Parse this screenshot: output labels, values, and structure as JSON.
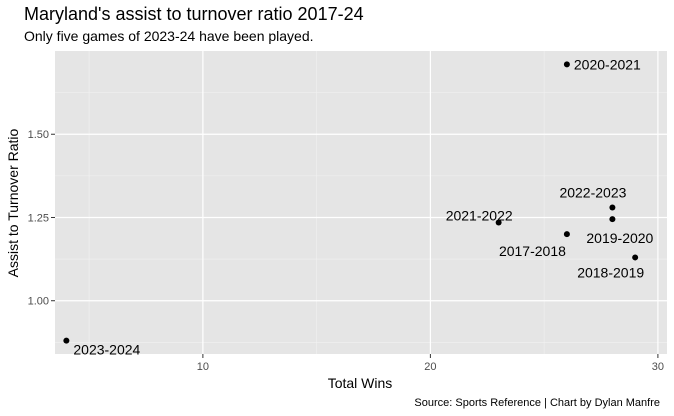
{
  "chart_data": {
    "type": "scatter",
    "title": "Maryland's assist to turnover ratio 2017-24",
    "subtitle": "Only five games of 2023-24 have been played.",
    "caption": "Source: Sports Reference | Chart by Dylan Manfre",
    "xlabel": "Total Wins",
    "ylabel": "Assist to Turnover Ratio",
    "xlim": [
      3.5,
      30.4
    ],
    "ylim": [
      0.84,
      1.75
    ],
    "x_ticks": [
      10,
      20,
      30
    ],
    "x_tick_labels": [
      "10",
      "20",
      "30"
    ],
    "y_ticks": [
      1.0,
      1.25,
      1.5
    ],
    "y_tick_labels": [
      "1.00",
      "1.25",
      "1.50"
    ],
    "grid": true,
    "points": [
      {
        "label": "2017-2018",
        "x": 26,
        "y": 1.2
      },
      {
        "label": "2018-2019",
        "x": 29,
        "y": 1.13
      },
      {
        "label": "2019-2020",
        "x": 28,
        "y": 1.245
      },
      {
        "label": "2020-2021",
        "x": 26,
        "y": 1.71
      },
      {
        "label": "2021-2022",
        "x": 23,
        "y": 1.235
      },
      {
        "label": "2022-2023",
        "x": 28,
        "y": 1.28
      },
      {
        "label": "2023-2024",
        "x": 4,
        "y": 0.88
      }
    ]
  }
}
